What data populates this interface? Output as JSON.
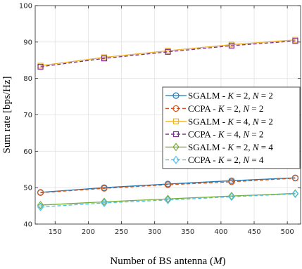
{
  "chart_data": {
    "type": "line",
    "title": "",
    "xlabel": "Number of BS antenna (M)",
    "ylabel": "Sum rate [bps/Hz]",
    "xlim": [
      120,
      520
    ],
    "ylim": [
      40,
      100
    ],
    "xticks": [
      150,
      200,
      250,
      300,
      350,
      400,
      450,
      500
    ],
    "yticks": [
      40,
      50,
      60,
      70,
      80,
      90,
      100
    ],
    "grid": true,
    "legend_position": "right",
    "x": [
      128,
      224,
      320,
      416,
      512
    ],
    "series": [
      {
        "name": "SGALM - K = 2, N = 2",
        "marker": "circle",
        "dash": "solid",
        "color": "#1f77b4",
        "values": [
          48.7,
          50.0,
          51.0,
          51.9,
          52.7
        ]
      },
      {
        "name": "CCPA - K = 2, N = 2",
        "marker": "circle",
        "dash": "dashed",
        "color": "#d95319",
        "values": [
          48.6,
          49.8,
          50.8,
          51.6,
          52.6
        ]
      },
      {
        "name": "SGALM - K = 4, N = 2",
        "marker": "square",
        "dash": "solid",
        "color": "#edb120",
        "values": [
          83.5,
          85.8,
          87.6,
          89.3,
          90.6
        ]
      },
      {
        "name": "CCPA - K = 4, N = 2",
        "marker": "square",
        "dash": "dashed",
        "color": "#7e2f8e",
        "values": [
          83.2,
          85.5,
          87.3,
          89.0,
          90.3
        ]
      },
      {
        "name": "SGALM - K = 2, N = 4",
        "marker": "diamond",
        "dash": "solid",
        "color": "#77ac30",
        "values": [
          45.2,
          46.1,
          46.9,
          47.7,
          48.4
        ]
      },
      {
        "name": "CCPA - K = 2, N = 4",
        "marker": "diamond",
        "dash": "dashed",
        "color": "#4dbeee",
        "values": [
          44.7,
          45.8,
          46.6,
          47.5,
          48.3
        ]
      }
    ],
    "legend": {
      "items": [
        {
          "pre": "SGALM - ",
          "k": "K",
          "kv": " = 2, ",
          "n": "N",
          "nv": " = 2"
        },
        {
          "pre": "CCPA - ",
          "k": "K",
          "kv": " = 2, ",
          "n": "N",
          "nv": " = 2"
        },
        {
          "pre": "SGALM - ",
          "k": "K",
          "kv": " = 4, ",
          "n": "N",
          "nv": " = 2"
        },
        {
          "pre": "CCPA - ",
          "k": "K",
          "kv": " = 4, ",
          "n": "N",
          "nv": " = 2"
        },
        {
          "pre": "SGALM - ",
          "k": "K",
          "kv": " = 2, ",
          "n": "N",
          "nv": " = 4"
        },
        {
          "pre": "CCPA - ",
          "k": "K",
          "kv": " = 2, ",
          "n": "N",
          "nv": " = 4"
        }
      ]
    },
    "xlabel_parts": {
      "pre": "Number of BS antenna (",
      "var": "M",
      "post": ")"
    }
  }
}
